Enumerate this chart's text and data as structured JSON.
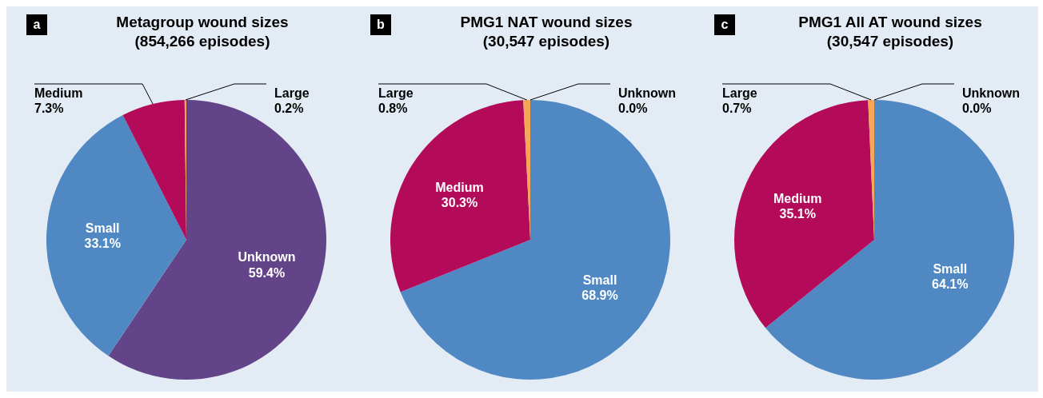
{
  "chart_data": [
    {
      "type": "pie",
      "title": "Metagroup wound sizes",
      "subtitle": "(854,266 episodes)",
      "annotations": [
        "a"
      ],
      "categories": [
        "Unknown",
        "Small",
        "Medium",
        "Large"
      ],
      "values": [
        59.4,
        33.1,
        7.3,
        0.2
      ],
      "value_labels": [
        "59.4%",
        "33.1%",
        "7.3%",
        "0.2%"
      ],
      "colors": [
        "#634489",
        "#5088c4",
        "#b30a5a",
        "#f5a656"
      ]
    },
    {
      "type": "pie",
      "title": "PMG1 NAT wound sizes",
      "subtitle": "(30,547 episodes)",
      "annotations": [
        "b"
      ],
      "categories": [
        "Small",
        "Medium",
        "Large",
        "Unknown"
      ],
      "values": [
        68.9,
        30.3,
        0.8,
        0.0
      ],
      "value_labels": [
        "68.9%",
        "30.3%",
        "0.8%",
        "0.0%"
      ],
      "colors": [
        "#5088c4",
        "#b30a5a",
        "#f5a656",
        "#634489"
      ]
    },
    {
      "type": "pie",
      "title": "PMG1 All AT wound sizes",
      "subtitle": "(30,547 episodes)",
      "annotations": [
        "c"
      ],
      "categories": [
        "Small",
        "Medium",
        "Large",
        "Unknown"
      ],
      "values": [
        64.1,
        35.1,
        0.7,
        0.0
      ],
      "value_labels": [
        "64.1%",
        "35.1%",
        "0.7%",
        "0.0%"
      ],
      "colors": [
        "#5088c4",
        "#b30a5a",
        "#f5a656",
        "#634489"
      ]
    }
  ]
}
